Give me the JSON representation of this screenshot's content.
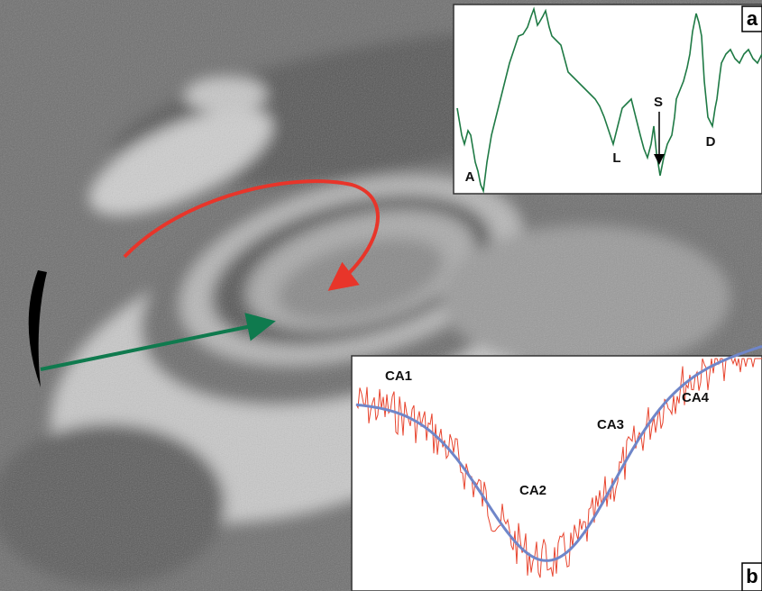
{
  "panels": [
    {
      "label": "a",
      "annotations": [
        "A",
        "L",
        "S",
        "D"
      ]
    },
    {
      "label": "b",
      "annotations": [
        "CA1",
        "CA2",
        "CA3",
        "CA4"
      ]
    }
  ]
}
